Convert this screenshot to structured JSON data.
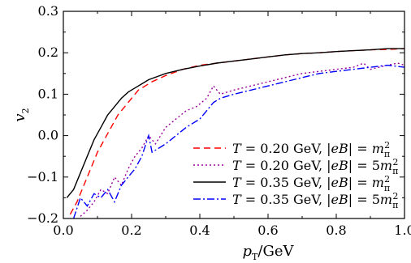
{
  "chart_data": {
    "type": "line",
    "title": "",
    "xlabel": "p_T/GeV",
    "ylabel": "v_2",
    "xlim": [
      0.0,
      1.0
    ],
    "ylim": [
      -0.2,
      0.3
    ],
    "xticks": [
      "0.0",
      "0.2",
      "0.4",
      "0.6",
      "0.8",
      "1.0"
    ],
    "yticks": [
      "−0.2",
      "−0.1",
      "0.0",
      "0.1",
      "0.2",
      "0.3"
    ],
    "grid": false,
    "legend_position": "bottom-right",
    "series": [
      {
        "name": "T = 0.20 GeV, |eB| = m_π^2",
        "color": "#ff0000",
        "dash": "dashed",
        "x": [
          0.02,
          0.04,
          0.06,
          0.08,
          0.1,
          0.12,
          0.14,
          0.16,
          0.18,
          0.2,
          0.22,
          0.24,
          0.26,
          0.3,
          0.35,
          0.4,
          0.45,
          0.5,
          0.55,
          0.6,
          0.65,
          0.7,
          0.75,
          0.8,
          0.85,
          0.9,
          0.95,
          1.0
        ],
        "y": [
          -0.19,
          -0.16,
          -0.12,
          -0.08,
          -0.04,
          -0.01,
          0.02,
          0.05,
          0.07,
          0.09,
          0.11,
          0.12,
          0.13,
          0.145,
          0.16,
          0.17,
          0.175,
          0.18,
          0.185,
          0.19,
          0.195,
          0.198,
          0.2,
          0.203,
          0.205,
          0.207,
          0.208,
          0.21
        ]
      },
      {
        "name": "T = 0.20 GeV, |eB| = 5m_π^2",
        "color": "#9b009b",
        "dash": "dotted",
        "x": [
          0.05,
          0.07,
          0.09,
          0.11,
          0.13,
          0.15,
          0.17,
          0.19,
          0.21,
          0.23,
          0.25,
          0.27,
          0.3,
          0.33,
          0.36,
          0.39,
          0.42,
          0.44,
          0.46,
          0.5,
          0.55,
          0.6,
          0.65,
          0.7,
          0.75,
          0.8,
          0.85,
          0.88,
          0.9,
          0.95,
          0.98,
          1.0
        ],
        "y": [
          -0.195,
          -0.18,
          -0.16,
          -0.13,
          -0.14,
          -0.1,
          -0.12,
          -0.08,
          -0.05,
          -0.03,
          0.0,
          -0.02,
          0.02,
          0.04,
          0.06,
          0.07,
          0.09,
          0.12,
          0.1,
          0.11,
          0.12,
          0.13,
          0.14,
          0.15,
          0.155,
          0.16,
          0.165,
          0.175,
          0.16,
          0.17,
          0.175,
          0.17
        ]
      },
      {
        "name": "T = 0.35 GeV, |eB| = m_π^2",
        "color": "#000000",
        "dash": "solid",
        "x": [
          0.01,
          0.03,
          0.05,
          0.07,
          0.09,
          0.11,
          0.13,
          0.15,
          0.17,
          0.19,
          0.21,
          0.23,
          0.25,
          0.3,
          0.35,
          0.4,
          0.45,
          0.5,
          0.55,
          0.6,
          0.65,
          0.7,
          0.75,
          0.8,
          0.85,
          0.9,
          0.95,
          1.0
        ],
        "y": [
          -0.15,
          -0.13,
          -0.09,
          -0.05,
          -0.01,
          0.02,
          0.05,
          0.07,
          0.09,
          0.105,
          0.115,
          0.125,
          0.135,
          0.15,
          0.16,
          0.168,
          0.175,
          0.18,
          0.185,
          0.19,
          0.195,
          0.198,
          0.2,
          0.203,
          0.205,
          0.207,
          0.21,
          0.21
        ]
      },
      {
        "name": "T = 0.35 GeV, |eB| = 5m_π^2",
        "color": "#0000ff",
        "dash": "dashdot",
        "x": [
          0.03,
          0.05,
          0.07,
          0.09,
          0.11,
          0.13,
          0.15,
          0.17,
          0.19,
          0.21,
          0.23,
          0.25,
          0.26,
          0.28,
          0.3,
          0.33,
          0.36,
          0.4,
          0.42,
          0.44,
          0.46,
          0.5,
          0.55,
          0.6,
          0.65,
          0.7,
          0.75,
          0.8,
          0.85,
          0.9,
          0.95,
          1.0
        ],
        "y": [
          -0.2,
          -0.15,
          -0.17,
          -0.14,
          -0.15,
          -0.13,
          -0.16,
          -0.12,
          -0.1,
          -0.08,
          -0.05,
          0.0,
          -0.04,
          -0.03,
          -0.02,
          0.0,
          0.02,
          0.04,
          0.06,
          0.08,
          0.09,
          0.1,
          0.11,
          0.12,
          0.13,
          0.14,
          0.15,
          0.155,
          0.16,
          0.165,
          0.17,
          0.165
        ]
      }
    ]
  }
}
